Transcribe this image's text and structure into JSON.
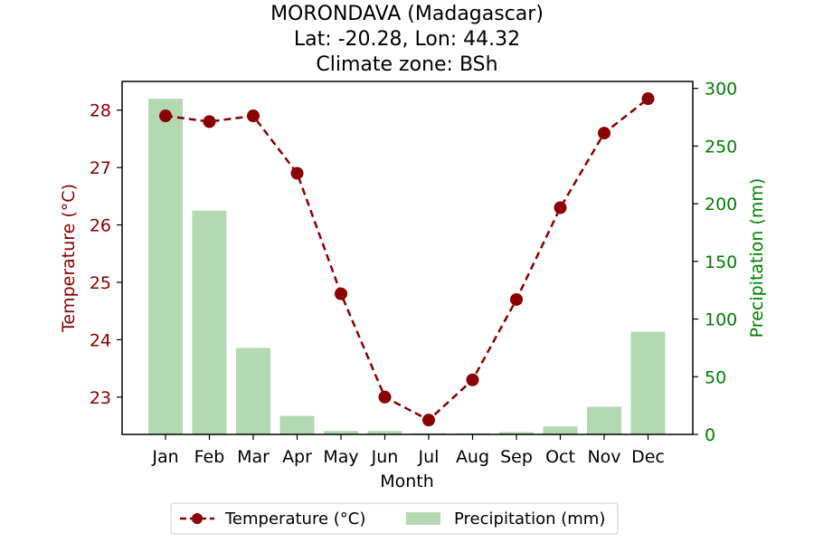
{
  "chart_data": {
    "type": "bar",
    "title": [
      "MORONDAVA (Madagascar)",
      "Lat: -20.28, Lon: 44.32",
      "Climate zone: BSh"
    ],
    "xlabel": "Month",
    "categories": [
      "Jan",
      "Feb",
      "Mar",
      "Apr",
      "May",
      "Jun",
      "Jul",
      "Aug",
      "Sep",
      "Oct",
      "Nov",
      "Dec"
    ],
    "y_left": {
      "label": "Temperature (°C)",
      "lim": [
        22.35,
        28.5
      ],
      "ticks": [
        23,
        24,
        25,
        26,
        27,
        28
      ],
      "color": "#8b0000"
    },
    "y_right": {
      "label": "Precipitation (mm)",
      "lim": [
        0,
        306
      ],
      "ticks": [
        0,
        50,
        100,
        150,
        200,
        250,
        300
      ],
      "color": "#008000"
    },
    "series": [
      {
        "name": "Temperature (°C)",
        "type": "line",
        "axis": "left",
        "color": "#8b0000",
        "style": "dashed-with-circle-markers",
        "values": [
          27.9,
          27.8,
          27.9,
          26.9,
          24.8,
          23.0,
          22.6,
          23.3,
          24.7,
          26.3,
          27.6,
          28.2
        ]
      },
      {
        "name": "Precipitation (mm)",
        "type": "bar",
        "axis": "right",
        "color": "#b2d9b2",
        "values": [
          291,
          194,
          75,
          16,
          3,
          3,
          1,
          1,
          2,
          7,
          24,
          89
        ]
      }
    ],
    "grid": false,
    "legend": {
      "placement": "bottom-center"
    }
  }
}
